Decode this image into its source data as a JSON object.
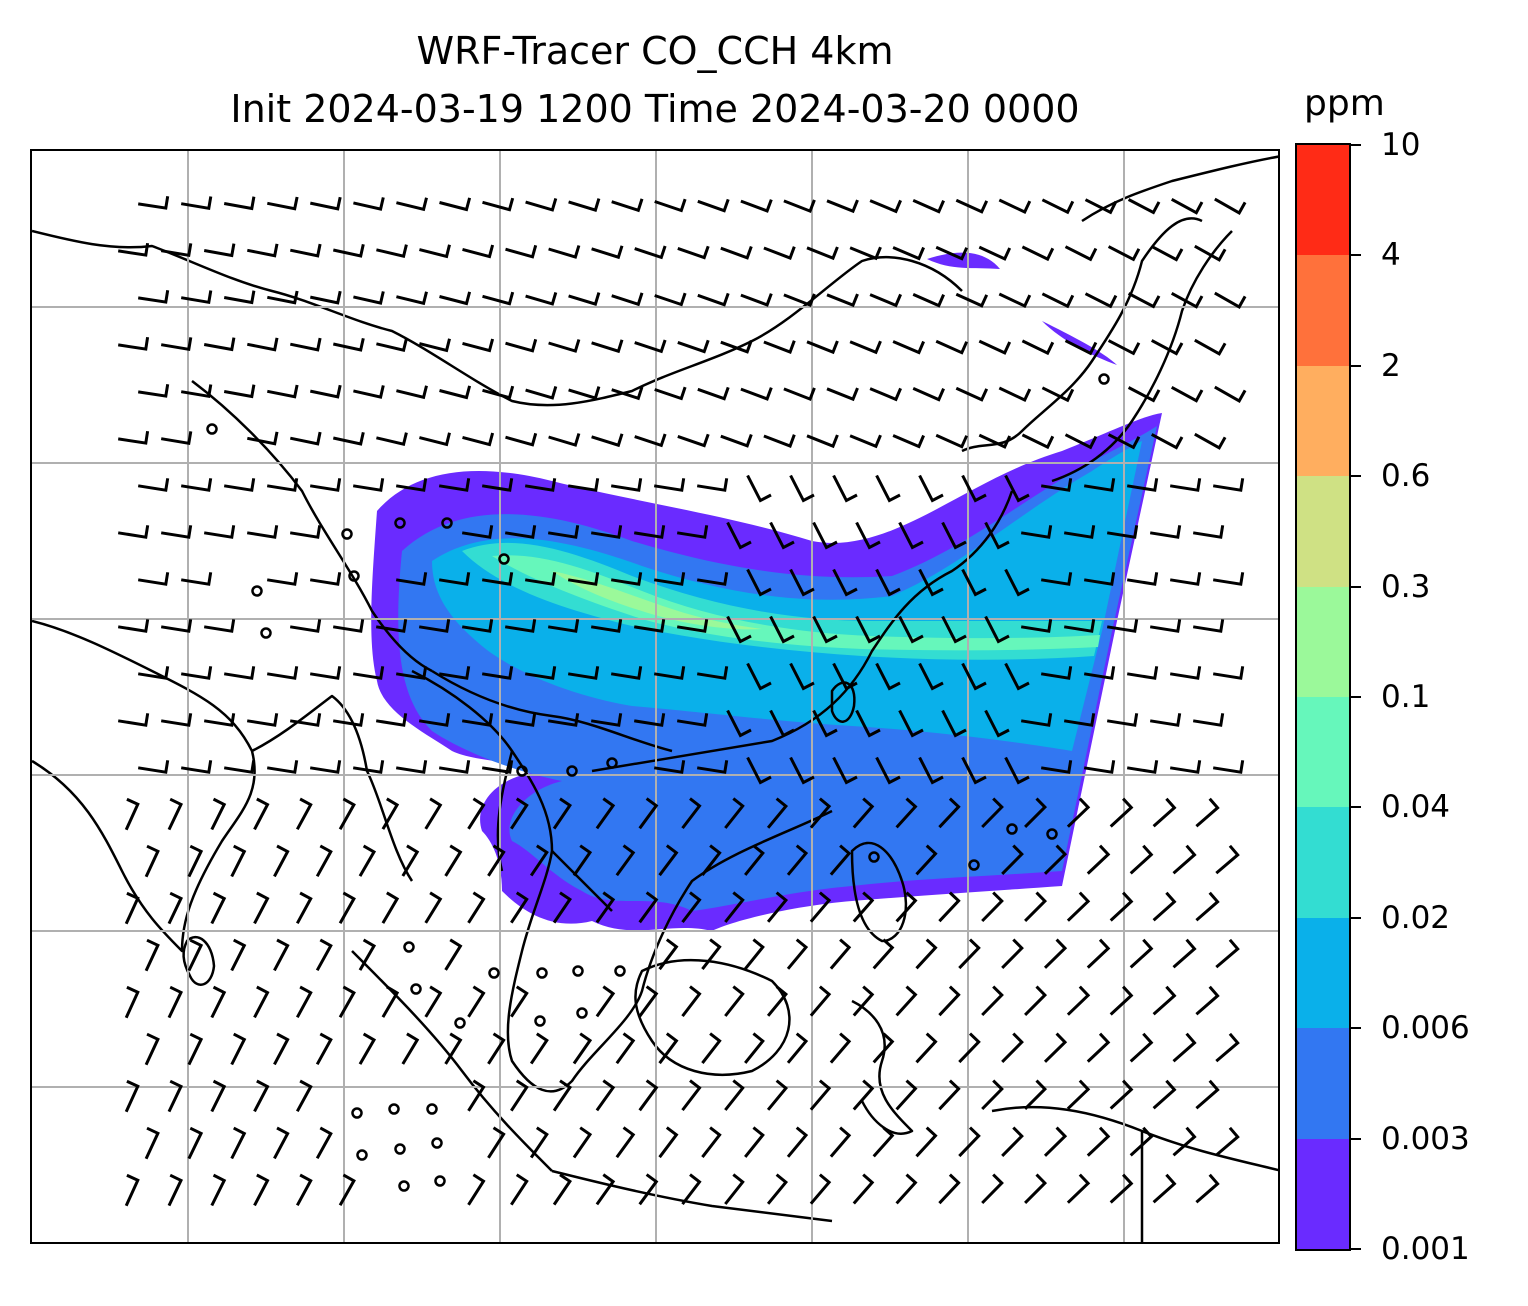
{
  "title": {
    "line1": "WRF-Tracer CO_CCH 4km",
    "line2": "Init 2024-03-19 1200 Time 2024-03-20 0000"
  },
  "colorbar": {
    "unit": "ppm",
    "levels": [
      "0.001",
      "0.003",
      "0.006",
      "0.02",
      "0.04",
      "0.1",
      "0.3",
      "0.6",
      "2",
      "4",
      "10"
    ],
    "colors": [
      "#6a2bff",
      "#3277f2",
      "#0ab0ea",
      "#33ddd2",
      "#66f7bb",
      "#9bf99a",
      "#cfe184",
      "#ffae5f",
      "#ff713b",
      "#ff2b16"
    ]
  },
  "map": {
    "gridlines": true,
    "features": [
      "coastlines",
      "country-borders",
      "wind-barbs",
      "co-tracer-concentration"
    ],
    "plume_levels_present": [
      "0.001",
      "0.003",
      "0.006",
      "0.02",
      "0.04",
      "0.1"
    ],
    "calm_marker": "circle"
  }
}
